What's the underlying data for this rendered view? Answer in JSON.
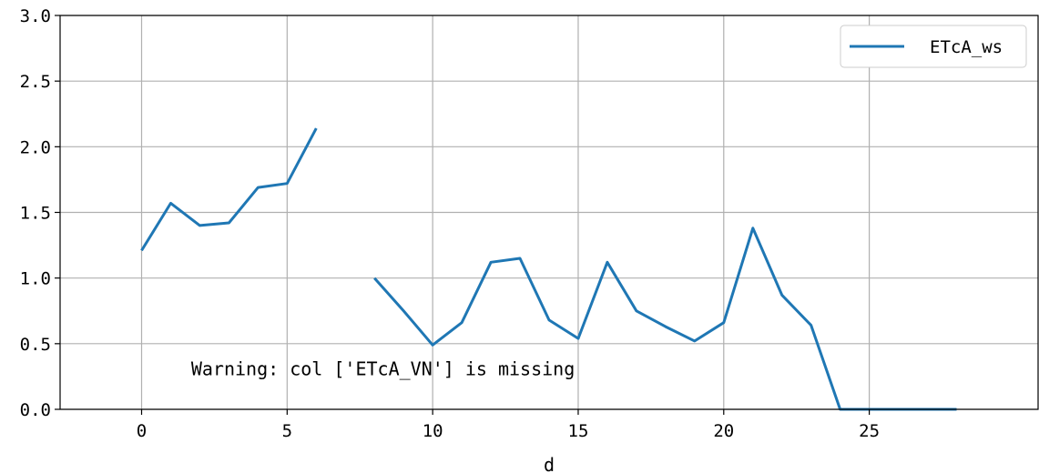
{
  "chart_data": {
    "type": "line",
    "xlabel": "d",
    "ylabel": "",
    "xlim": [
      -2.8,
      30.8
    ],
    "ylim": [
      0,
      3.0
    ],
    "x_ticks": [
      0,
      5,
      10,
      15,
      20,
      25
    ],
    "y_ticks": [
      0.0,
      0.5,
      1.0,
      1.5,
      2.0,
      2.5,
      3.0
    ],
    "x_tick_labels": [
      "0",
      "5",
      "10",
      "15",
      "20",
      "25"
    ],
    "y_tick_labels": [
      "0.0",
      "0.5",
      "1.0",
      "1.5",
      "2.0",
      "2.5",
      "3.0"
    ],
    "grid": true,
    "legend_position": "top-right",
    "series": [
      {
        "name": "ETcA_ws",
        "color": "#1f77b4",
        "x": [
          0,
          1,
          2,
          3,
          4,
          5,
          6,
          7,
          8,
          9,
          10,
          11,
          12,
          13,
          14,
          15,
          16,
          17,
          18,
          19,
          20,
          21,
          22,
          23,
          24,
          25,
          26,
          27,
          28
        ],
        "y": [
          1.21,
          1.57,
          1.4,
          1.42,
          1.69,
          1.72,
          2.14,
          null,
          1.0,
          0.75,
          0.49,
          0.66,
          1.12,
          1.15,
          0.68,
          0.54,
          1.12,
          0.75,
          0.63,
          0.52,
          0.66,
          1.38,
          0.87,
          0.64,
          0.0,
          0.0,
          0.0,
          0.0,
          0.0
        ]
      }
    ],
    "annotations": [
      {
        "text": "Warning: col ['ETcA_VN'] is missing",
        "x": 1.7,
        "y": 0.31
      }
    ]
  }
}
